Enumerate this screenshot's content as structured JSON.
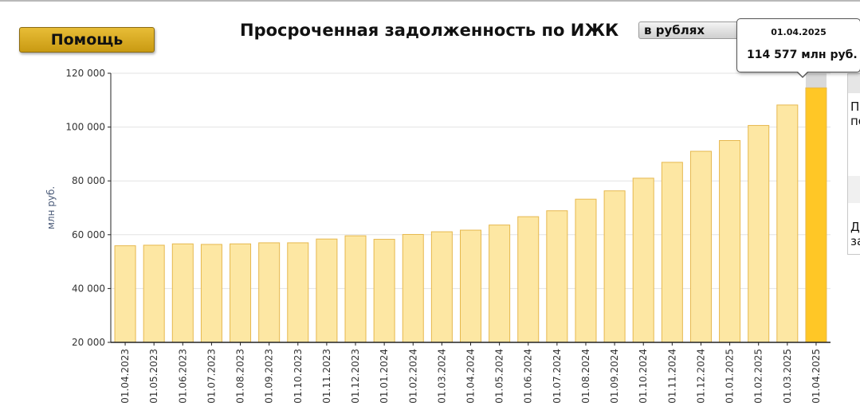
{
  "toolbar": {
    "help_label": "Помощь",
    "unit_selected": "в рублях"
  },
  "title": "Просроченная задолженность по ИЖК",
  "tooltip": {
    "date": "01.04.2025",
    "value_text": "114 577 млн руб."
  },
  "side_panel": {
    "line1": "П",
    "line2": "по",
    "line3": "Д",
    "line4": "за"
  },
  "colors": {
    "bar_fill": "#fde7a3",
    "bar_stroke": "#e6b84e",
    "bar_highlight": "#ffc726",
    "highlight_band": "#d9d9d9",
    "grid": "#e3e3e3",
    "axis": "#222222"
  },
  "chart_data": {
    "type": "bar",
    "title": "Просроченная задолженность по ИЖК",
    "ylabel": "млн руб.",
    "xlabel": "",
    "ylim": [
      20000,
      120000
    ],
    "yticks": [
      20000,
      40000,
      60000,
      80000,
      100000,
      120000
    ],
    "ytick_labels": [
      "20 000",
      "40 000",
      "60 000",
      "80 000",
      "100 000",
      "120 000"
    ],
    "grid": true,
    "highlighted_category": "01.04.2025",
    "categories": [
      "01.04.2023",
      "01.05.2023",
      "01.06.2023",
      "01.07.2023",
      "01.08.2023",
      "01.09.2023",
      "01.10.2023",
      "01.11.2023",
      "01.12.2023",
      "01.01.2024",
      "01.02.2024",
      "01.03.2024",
      "01.04.2024",
      "01.05.2024",
      "01.06.2024",
      "01.07.2024",
      "01.08.2024",
      "01.09.2024",
      "01.10.2024",
      "01.11.2024",
      "01.12.2024",
      "01.01.2025",
      "01.02.2025",
      "01.03.2025",
      "01.04.2025"
    ],
    "values": [
      55900,
      56100,
      56600,
      56400,
      56600,
      57000,
      57000,
      58400,
      59600,
      58300,
      60100,
      61100,
      61700,
      63600,
      66700,
      68900,
      73200,
      76300,
      81000,
      86900,
      91000,
      95000,
      100600,
      108200,
      114577
    ]
  }
}
